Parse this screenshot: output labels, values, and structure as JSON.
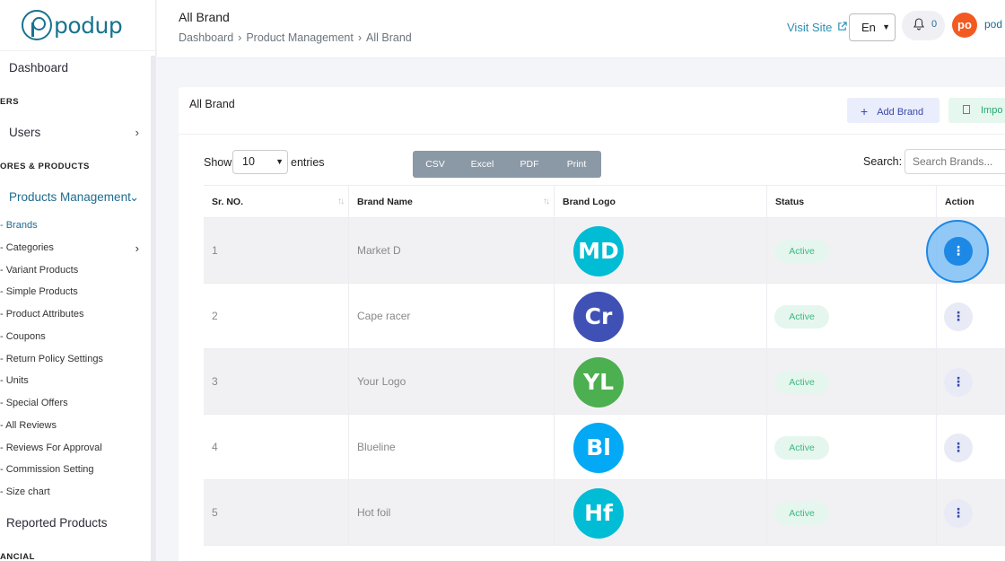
{
  "brand": {
    "logo_text": "podup"
  },
  "sidebar": {
    "dashboard": "Dashboard",
    "section_users": "ERS",
    "users": "Users",
    "section_stores": "ORES & PRODUCTS",
    "products_management": "Products Management",
    "sub_items": [
      {
        "label": "- Brands",
        "active": true
      },
      {
        "label": "- Categories",
        "active": false,
        "has_children": true
      },
      {
        "label": "- Variant Products",
        "active": false
      },
      {
        "label": "- Simple Products",
        "active": false
      },
      {
        "label": "- Product Attributes",
        "active": false
      },
      {
        "label": "- Coupons",
        "active": false
      },
      {
        "label": "- Return Policy Settings",
        "active": false
      },
      {
        "label": "- Units",
        "active": false
      },
      {
        "label": "- Special Offers",
        "active": false
      },
      {
        "label": "- All Reviews",
        "active": false
      },
      {
        "label": "- Reviews For Approval",
        "active": false
      },
      {
        "label": "- Commission Setting",
        "active": false
      },
      {
        "label": "- Size chart",
        "active": false
      }
    ],
    "reported_products": "Reported Products",
    "section_financial": "ANCIAL"
  },
  "header": {
    "title": "All Brand",
    "breadcrumb": [
      "Dashboard",
      "Product Management",
      "All Brand"
    ],
    "visit_site": "Visit Site",
    "language": "En",
    "notifications_count": "0",
    "avatar_initials": "po",
    "user_name": "pod"
  },
  "card": {
    "title": "All Brand",
    "add_button": "Add Brand",
    "import_button": "Impo",
    "show_label": "Show",
    "entries_value": "10",
    "entries_label": "entries",
    "export_buttons": [
      "CSV",
      "Excel",
      "PDF",
      "Print"
    ],
    "search_label": "Search:",
    "search_placeholder": "Search Brands..."
  },
  "table": {
    "columns": [
      "Sr. NO.",
      "Brand Name",
      "Brand Logo",
      "Status",
      "Action"
    ],
    "rows": [
      {
        "sr": "1",
        "name": "Market D",
        "logo": "MD",
        "logo_color": "#00bcd4",
        "status": "Active"
      },
      {
        "sr": "2",
        "name": "Cape racer",
        "logo": "Cr",
        "logo_color": "#3f51b5",
        "status": "Active"
      },
      {
        "sr": "3",
        "name": "Your Logo",
        "logo": "YL",
        "logo_color": "#4caf50",
        "status": "Active"
      },
      {
        "sr": "4",
        "name": "Blueline",
        "logo": "Bl",
        "logo_color": "#03a9f4",
        "status": "Active"
      },
      {
        "sr": "5",
        "name": "Hot foil",
        "logo": "Hf",
        "logo_color": "#00bcd4",
        "status": "Active"
      }
    ],
    "action_icon": "⋮"
  },
  "colors": {
    "accent": "#1f6b8f",
    "active_status": "#3cb982",
    "focused_action": "#1e88e5"
  }
}
